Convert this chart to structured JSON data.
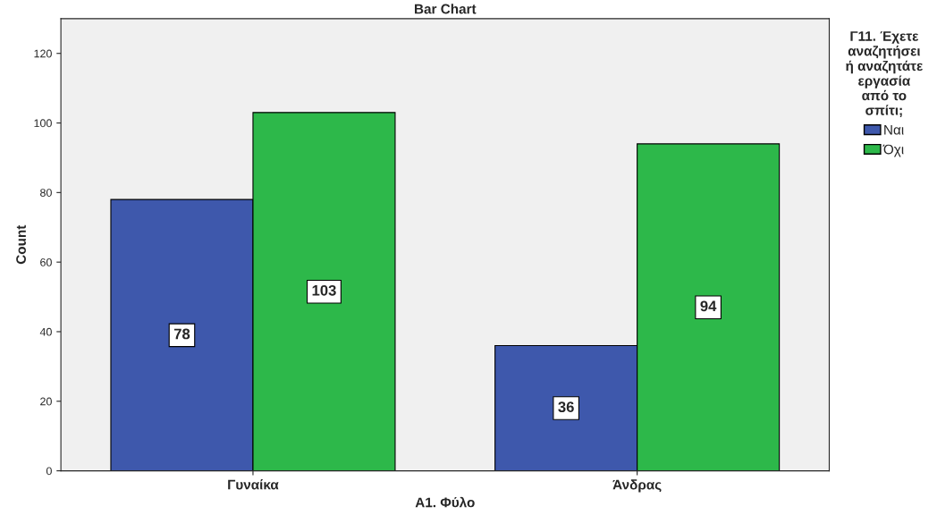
{
  "chart_data": {
    "type": "bar",
    "title": "Bar Chart",
    "xlabel": "Α1. Φύλο",
    "ylabel": "Count",
    "legend_title": "Γ11. Έχετε\nαναζητήσει\nή αναζητάτε\nεργασία\nαπό το\nσπίτι;",
    "categories": [
      "Γυναίκα",
      "Άνδρας"
    ],
    "series": [
      {
        "name": "Ναι",
        "color": "#3e58ac",
        "values": [
          78,
          36
        ]
      },
      {
        "name": "Όχι",
        "color": "#2db84a",
        "values": [
          103,
          94
        ]
      }
    ],
    "ylim": [
      0,
      130
    ],
    "yticks": [
      0,
      20,
      40,
      60,
      80,
      100,
      120
    ],
    "grid": false,
    "legend": "right",
    "data_labels": true
  }
}
